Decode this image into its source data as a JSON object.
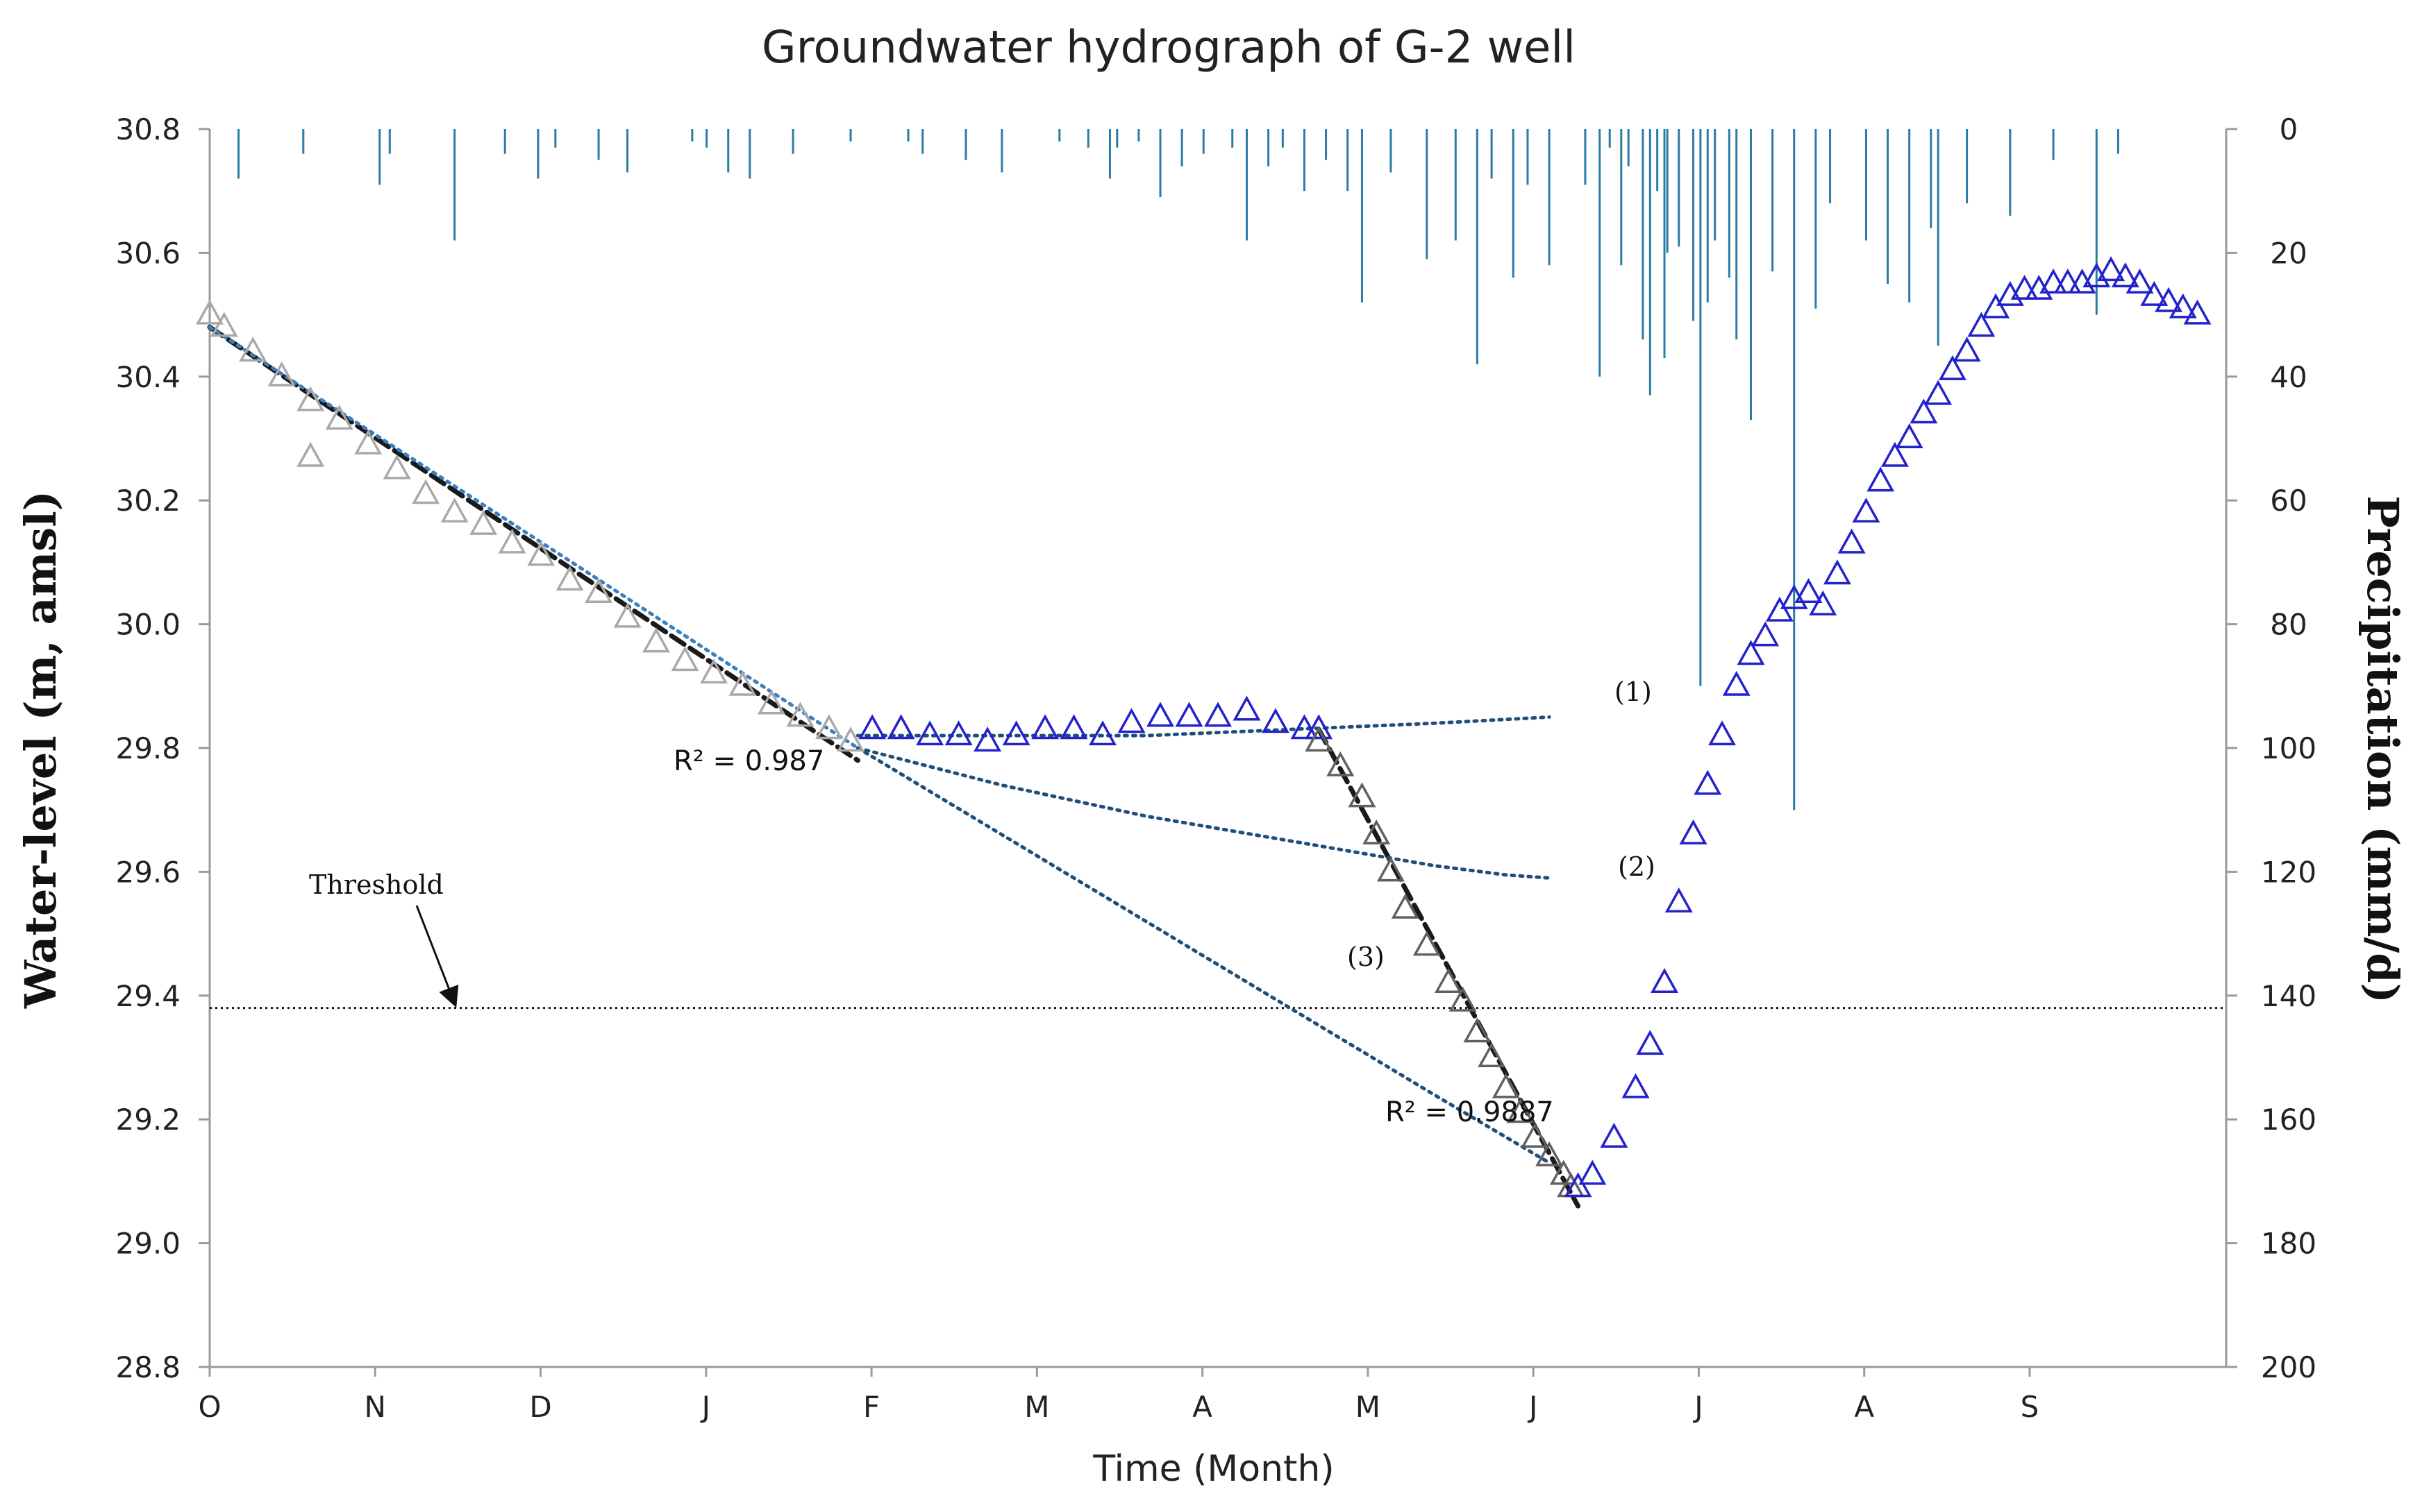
{
  "chart_data": {
    "type": "line",
    "title": "Groundwater hydrograph of G-2 well",
    "xlabel": "Time (Month)",
    "ylabel": "Water-level (m, amsl)",
    "y2label": "Precipitation (mm/d)",
    "ylim": [
      28.8,
      30.8
    ],
    "y2lim": [
      0,
      200
    ],
    "y_ticks": [
      "28.8",
      "29.0",
      "29.2",
      "29.4",
      "29.6",
      "29.8",
      "30.0",
      "30.2",
      "30.4",
      "30.6",
      "30.8"
    ],
    "y2_ticks": [
      "0",
      "20",
      "40",
      "60",
      "80",
      "100",
      "120",
      "140",
      "160",
      "180",
      "200"
    ],
    "months": [
      "O",
      "N",
      "D",
      "J",
      "F",
      "M",
      "A",
      "M",
      "J",
      "J",
      "A",
      "S"
    ],
    "threshold": {
      "label": "Threshold",
      "value": 29.38
    },
    "annotations": {
      "r2_first": "R² = 0.987",
      "r2_second": "R² = 0.9887",
      "scenario_1": "(1)",
      "scenario_2": "(2)",
      "scenario_3": "(3)"
    },
    "series": [
      {
        "name": "Recession observed water level (gray triangles)",
        "color": "#a9a9a9",
        "x": [
          0,
          0.1,
          0.3,
          0.5,
          0.7,
          0.9,
          1.1,
          1.3,
          1.5,
          1.7,
          1.9,
          2.1,
          2.3,
          2.5,
          2.7,
          2.9,
          3.1,
          3.3,
          3.5,
          3.7,
          3.9,
          4.1,
          4.3,
          4.45
        ],
        "y": [
          30.5,
          30.48,
          30.44,
          30.4,
          30.36,
          30.33,
          30.29,
          30.25,
          30.21,
          30.18,
          30.16,
          30.13,
          30.11,
          30.07,
          30.05,
          30.01,
          29.97,
          29.94,
          29.92,
          29.9,
          29.87,
          29.85,
          29.83,
          29.81
        ]
      },
      {
        "name": "Outlier gray",
        "color": "#a9a9a9",
        "x": [
          0.7
        ],
        "y": [
          30.27
        ]
      },
      {
        "name": "Plateau observed water level (blue triangles)",
        "color": "#2222cc",
        "x": [
          4.6,
          4.8,
          5.0,
          5.2,
          5.4,
          5.6,
          5.8,
          6.0,
          6.2,
          6.4,
          6.6,
          6.8,
          7.0,
          7.2,
          7.4,
          7.6,
          7.7
        ],
        "y": [
          29.83,
          29.83,
          29.82,
          29.82,
          29.81,
          29.82,
          29.83,
          29.83,
          29.82,
          29.84,
          29.85,
          29.85,
          29.85,
          29.86,
          29.84,
          29.83,
          29.83
        ]
      },
      {
        "name": "Decline observed water level (dark gray triangles)",
        "color": "#606060",
        "x": [
          7.7,
          7.85,
          8.0,
          8.1,
          8.2,
          8.3,
          8.45,
          8.6,
          8.7,
          8.8,
          8.9,
          9.0,
          9.1,
          9.2,
          9.3,
          9.4,
          9.45
        ],
        "y": [
          29.81,
          29.77,
          29.72,
          29.66,
          29.6,
          29.54,
          29.48,
          29.42,
          29.39,
          29.34,
          29.3,
          29.25,
          29.21,
          29.17,
          29.14,
          29.11,
          29.09
        ]
      },
      {
        "name": "Rising observed water level (blue triangles)",
        "color": "#2222cc",
        "x": [
          9.5,
          9.6,
          9.75,
          9.9,
          10.0,
          10.1,
          10.2,
          10.3,
          10.4,
          10.5,
          10.6,
          10.7,
          10.8,
          10.9,
          11.0,
          11.1,
          11.2,
          11.3,
          11.4,
          11.5,
          11.6,
          11.7,
          11.8,
          11.9,
          12.0,
          12.1,
          12.2,
          12.3,
          12.4,
          12.5,
          12.6,
          12.7,
          12.8,
          12.9,
          13.0,
          13.1,
          13.2,
          13.3,
          13.4,
          13.5,
          13.6,
          13.7,
          13.8
        ],
        "y": [
          29.09,
          29.11,
          29.17,
          29.25,
          29.32,
          29.42,
          29.55,
          29.66,
          29.74,
          29.82,
          29.9,
          29.95,
          29.98,
          30.02,
          30.04,
          30.05,
          30.03,
          30.08,
          30.13,
          30.18,
          30.23,
          30.27,
          30.3,
          30.34,
          30.37,
          30.41,
          30.44,
          30.48,
          30.51,
          30.53,
          30.54,
          30.54,
          30.55,
          30.55,
          30.55,
          30.56,
          30.57,
          30.56,
          30.55,
          30.53,
          30.52,
          30.51,
          30.5
        ]
      }
    ],
    "trend_lines": [
      {
        "name": "Recession fit (black dashed)",
        "color": "#1a1a1a",
        "x": [
          0,
          4.5
        ],
        "y": [
          30.48,
          29.78
        ]
      },
      {
        "name": "Recession fit (blue dotted)",
        "color": "#3a7fc0",
        "x": [
          0,
          4.5
        ],
        "y": [
          30.48,
          29.8
        ]
      },
      {
        "name": "Decline fit (black dashed)",
        "color": "#1a1a1a",
        "x": [
          7.7,
          9.5
        ],
        "y": [
          29.83,
          29.06
        ]
      },
      {
        "name": "Scenario (1)",
        "color": "#1f4e79",
        "x": [
          4.5,
          5.5,
          6.5,
          7.5,
          8.5,
          9.3
        ],
        "y": [
          29.82,
          29.82,
          29.82,
          29.83,
          29.84,
          29.85
        ]
      },
      {
        "name": "Scenario (2)",
        "color": "#1f4e79",
        "x": [
          4.5,
          5.5,
          6.5,
          7.5,
          8.0,
          8.5,
          9.0,
          9.3
        ],
        "y": [
          29.8,
          29.74,
          29.69,
          29.65,
          29.63,
          29.61,
          29.595,
          29.59
        ]
      },
      {
        "name": "Scenario (3)",
        "color": "#1f4e79",
        "x": [
          4.5,
          5.5,
          6.5,
          7.5,
          8.5,
          9.3
        ],
        "y": [
          29.8,
          29.66,
          29.52,
          29.38,
          29.24,
          29.13
        ]
      }
    ],
    "precipitation": {
      "name": "Precipitation (mm/d)",
      "color": "#2b7ba5",
      "x": [
        0.0,
        0.2,
        0.65,
        1.18,
        1.25,
        1.7,
        2.05,
        2.28,
        2.4,
        2.7,
        2.9,
        3.35,
        3.45,
        3.6,
        3.75,
        4.05,
        4.45,
        4.85,
        4.95,
        5.25,
        5.5,
        5.9,
        6.1,
        6.25,
        6.3,
        6.45,
        6.6,
        6.75,
        6.9,
        7.1,
        7.2,
        7.35,
        7.45,
        7.6,
        7.75,
        7.9,
        8.0,
        8.2,
        8.45,
        8.65,
        8.8,
        8.9,
        9.05,
        9.15,
        9.3,
        9.55,
        9.65,
        9.72,
        9.8,
        9.85,
        9.95,
        10.0,
        10.05,
        10.1,
        10.12,
        10.2,
        10.3,
        10.35,
        10.4,
        10.45,
        10.55,
        10.6,
        10.7,
        10.85,
        11.0,
        11.15,
        11.25,
        11.5,
        11.65,
        11.8,
        11.95,
        12.0,
        12.2,
        12.5,
        12.8,
        13.1,
        13.25
      ],
      "values": [
        5,
        8,
        4,
        9,
        4,
        18,
        4,
        8,
        3,
        5,
        7,
        2,
        3,
        7,
        8,
        4,
        2,
        2,
        4,
        5,
        7,
        2,
        3,
        8,
        3,
        2,
        11,
        6,
        4,
        3,
        18,
        6,
        3,
        10,
        5,
        10,
        28,
        7,
        21,
        18,
        38,
        8,
        24,
        9,
        22,
        9,
        40,
        3,
        22,
        6,
        34,
        43,
        10,
        37,
        20,
        19,
        31,
        90,
        28,
        18,
        24,
        34,
        47,
        23,
        110,
        29,
        12,
        18,
        25,
        28,
        16,
        35,
        12,
        14,
        5,
        30,
        4
      ]
    }
  }
}
